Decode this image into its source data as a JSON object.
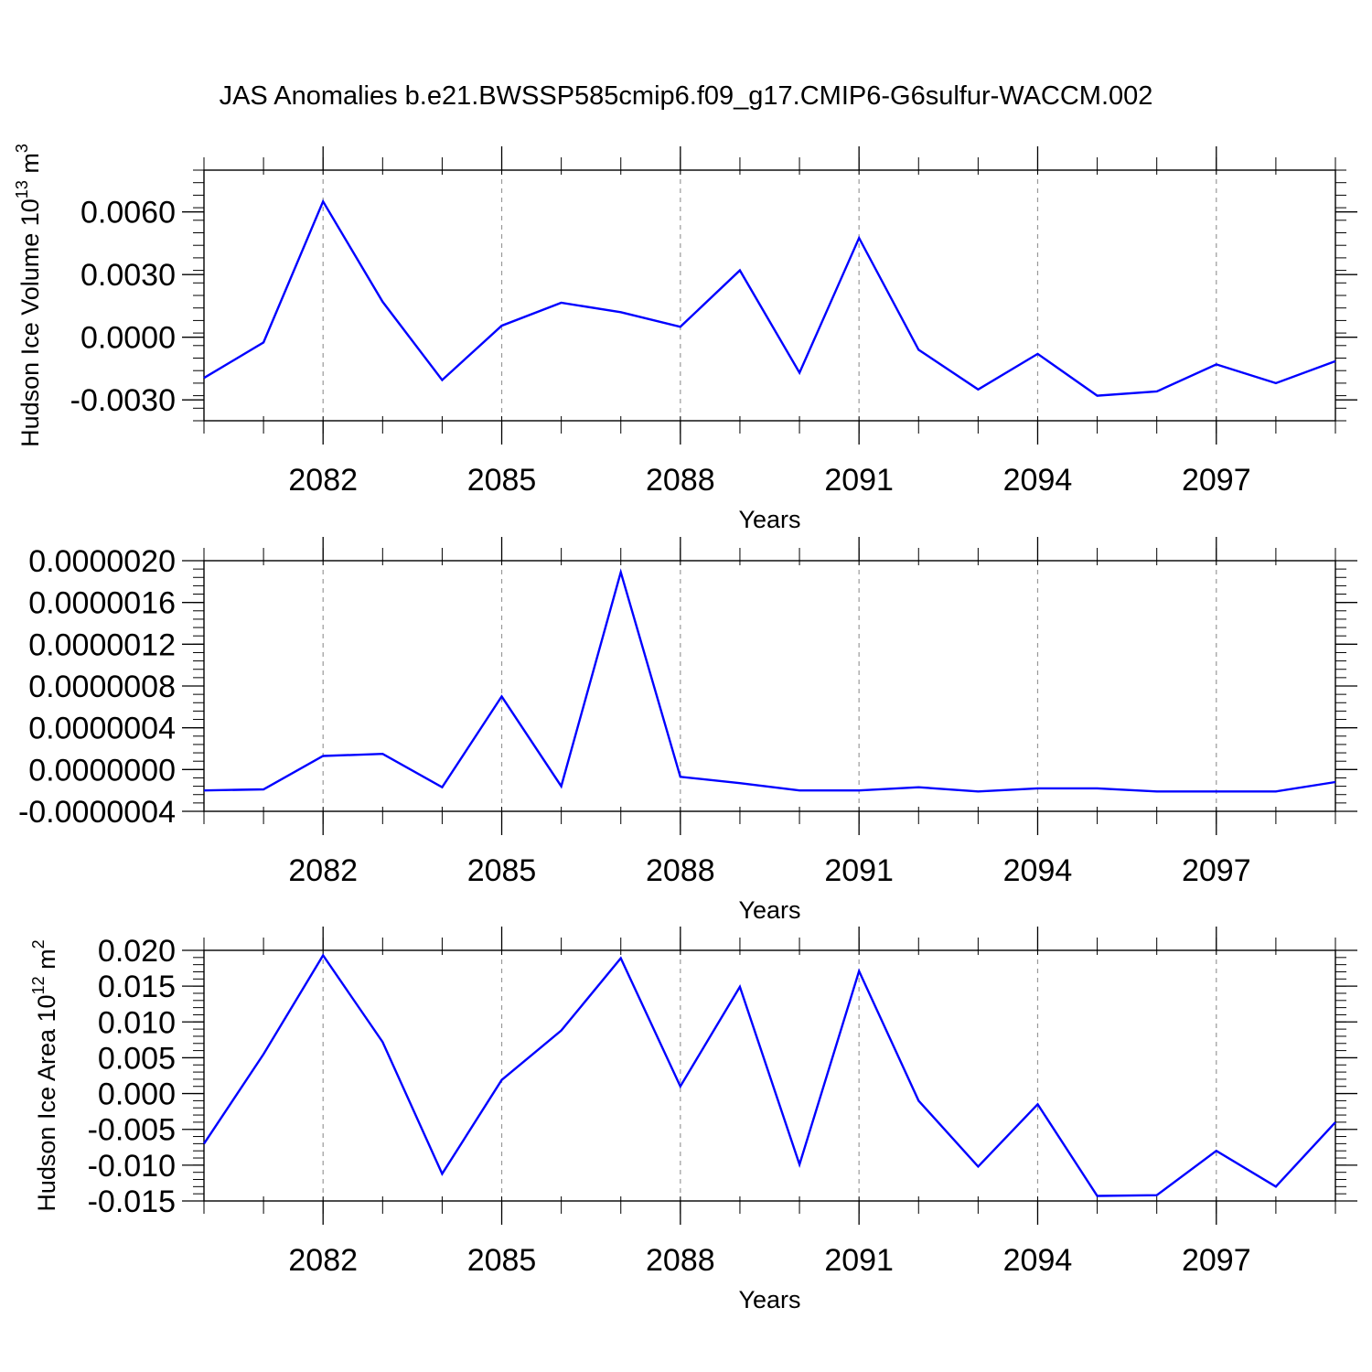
{
  "figure": {
    "title": "JAS Anomalies b.e21.BWSSP585cmip6.f09_g17.CMIP6-G6sulfur-WACCM.002"
  },
  "chart_data": [
    {
      "type": "line",
      "title": "",
      "xlabel": "Years",
      "ylabel": {
        "main": "Hudson Ice Volume 10",
        "exp": "13",
        "unit": " m",
        "unit_exp": "3"
      },
      "x": [
        2080,
        2081,
        2082,
        2083,
        2084,
        2085,
        2086,
        2087,
        2088,
        2089,
        2090,
        2091,
        2092,
        2093,
        2094,
        2095,
        2096,
        2097,
        2098,
        2099
      ],
      "xlim": [
        2080,
        2099
      ],
      "xticks": [
        2082,
        2085,
        2088,
        2091,
        2094,
        2097
      ],
      "xtick_labels": [
        "2082",
        "2085",
        "2088",
        "2091",
        "2094",
        "2097"
      ],
      "ylim": [
        -0.004,
        0.008
      ],
      "yticks": [
        -0.003,
        0.0,
        0.003,
        0.006
      ],
      "ytick_labels": [
        "-0.0030",
        "0.0000",
        "0.0030",
        "0.0060"
      ],
      "grid": "vertical dashed at major x ticks",
      "legend": "none",
      "series": [
        {
          "color": "#0000ff",
          "values": [
            -0.00195,
            -0.00025,
            0.0065,
            0.0017,
            -0.00205,
            0.00055,
            0.00165,
            0.0012,
            0.0005,
            0.0032,
            -0.0017,
            0.00475,
            -0.0006,
            -0.0025,
            -0.0008,
            -0.0028,
            -0.0026,
            -0.0013,
            -0.0022,
            -0.00115
          ]
        }
      ]
    },
    {
      "type": "line",
      "title": "",
      "xlabel": "Years",
      "ylabel": null,
      "x": [
        2080,
        2081,
        2082,
        2083,
        2084,
        2085,
        2086,
        2087,
        2088,
        2089,
        2090,
        2091,
        2092,
        2093,
        2094,
        2095,
        2096,
        2097,
        2098,
        2099
      ],
      "xlim": [
        2080,
        2099
      ],
      "xticks": [
        2082,
        2085,
        2088,
        2091,
        2094,
        2097
      ],
      "xtick_labels": [
        "2082",
        "2085",
        "2088",
        "2091",
        "2094",
        "2097"
      ],
      "ylim": [
        -4e-07,
        2e-06
      ],
      "yticks": [
        -4e-07,
        0.0,
        4e-07,
        8e-07,
        1.2e-06,
        1.6e-06,
        2e-06
      ],
      "ytick_labels": [
        "-0.0000004",
        "0.0000000",
        "0.0000004",
        "0.0000008",
        "0.0000012",
        "0.0000016",
        "0.0000020"
      ],
      "grid": "vertical dashed at major x ticks",
      "legend": "none",
      "series": [
        {
          "color": "#0000ff",
          "values": [
            -2e-07,
            -1.9e-07,
            1.3e-07,
            1.5e-07,
            -1.7e-07,
            7e-07,
            -1.6e-07,
            1.89e-06,
            -7e-08,
            -1.3e-07,
            -2e-07,
            -2e-07,
            -1.7e-07,
            -2.1e-07,
            -1.8e-07,
            -1.8e-07,
            -2.1e-07,
            -2.1e-07,
            -2.1e-07,
            -1.2e-07
          ]
        }
      ]
    },
    {
      "type": "line",
      "title": "",
      "xlabel": "Years",
      "ylabel": {
        "main": "Hudson Ice Area 10",
        "exp": "12",
        "unit": " m",
        "unit_exp": "2"
      },
      "x": [
        2080,
        2081,
        2082,
        2083,
        2084,
        2085,
        2086,
        2087,
        2088,
        2089,
        2090,
        2091,
        2092,
        2093,
        2094,
        2095,
        2096,
        2097,
        2098,
        2099
      ],
      "xlim": [
        2080,
        2099
      ],
      "xticks": [
        2082,
        2085,
        2088,
        2091,
        2094,
        2097
      ],
      "xtick_labels": [
        "2082",
        "2085",
        "2088",
        "2091",
        "2094",
        "2097"
      ],
      "ylim": [
        -0.015,
        0.02
      ],
      "yticks": [
        -0.015,
        -0.01,
        -0.005,
        0.0,
        0.005,
        0.01,
        0.015,
        0.02
      ],
      "ytick_labels": [
        "-0.015",
        "-0.010",
        "-0.005",
        "0.000",
        "0.005",
        "0.010",
        "0.015",
        "0.020"
      ],
      "grid": "vertical dashed at major x ticks",
      "legend": "none",
      "series": [
        {
          "color": "#0000ff",
          "values": [
            -0.007,
            0.0055,
            0.0193,
            0.0072,
            -0.0112,
            0.0019,
            0.0088,
            0.0189,
            0.001,
            0.0149,
            -0.0099,
            0.0171,
            -0.001,
            -0.0102,
            -0.0015,
            -0.0143,
            -0.0142,
            -0.008,
            -0.013,
            -0.004
          ]
        }
      ]
    }
  ]
}
